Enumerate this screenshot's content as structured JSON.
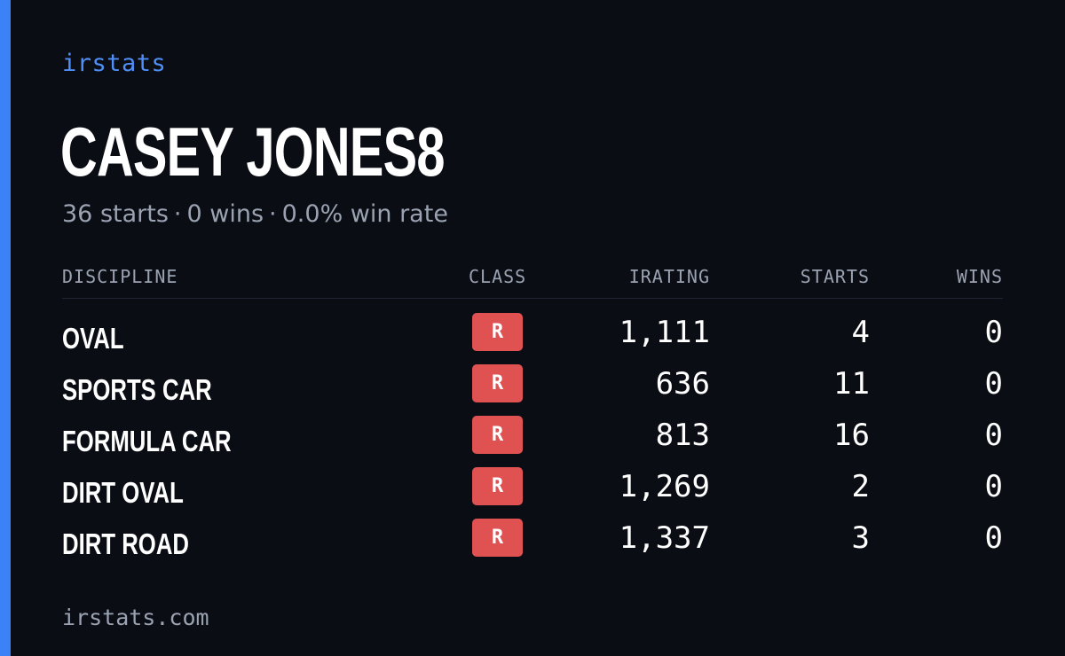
{
  "brand": "irstats",
  "driver": {
    "name": "CASEY JONES8"
  },
  "summary": {
    "starts": "36 starts",
    "wins": "0 wins",
    "win_rate": "0.0% win rate",
    "separator": "·"
  },
  "table": {
    "headers": {
      "discipline": "DISCIPLINE",
      "class": "CLASS",
      "irating": "IRATING",
      "starts": "STARTS",
      "wins": "WINS"
    },
    "rows": [
      {
        "discipline": "OVAL",
        "class": "R",
        "irating": "1,111",
        "starts": "4",
        "wins": "0"
      },
      {
        "discipline": "SPORTS CAR",
        "class": "R",
        "irating": "636",
        "starts": "11",
        "wins": "0"
      },
      {
        "discipline": "FORMULA CAR",
        "class": "R",
        "irating": "813",
        "starts": "16",
        "wins": "0"
      },
      {
        "discipline": "DIRT OVAL",
        "class": "R",
        "irating": "1,269",
        "starts": "2",
        "wins": "0"
      },
      {
        "discipline": "DIRT ROAD",
        "class": "R",
        "irating": "1,337",
        "starts": "3",
        "wins": "0"
      }
    ]
  },
  "footer": "irstats.com",
  "colors": {
    "background": "#0a0d14",
    "accent": "#3b82f6",
    "class_r": "#e05252"
  }
}
